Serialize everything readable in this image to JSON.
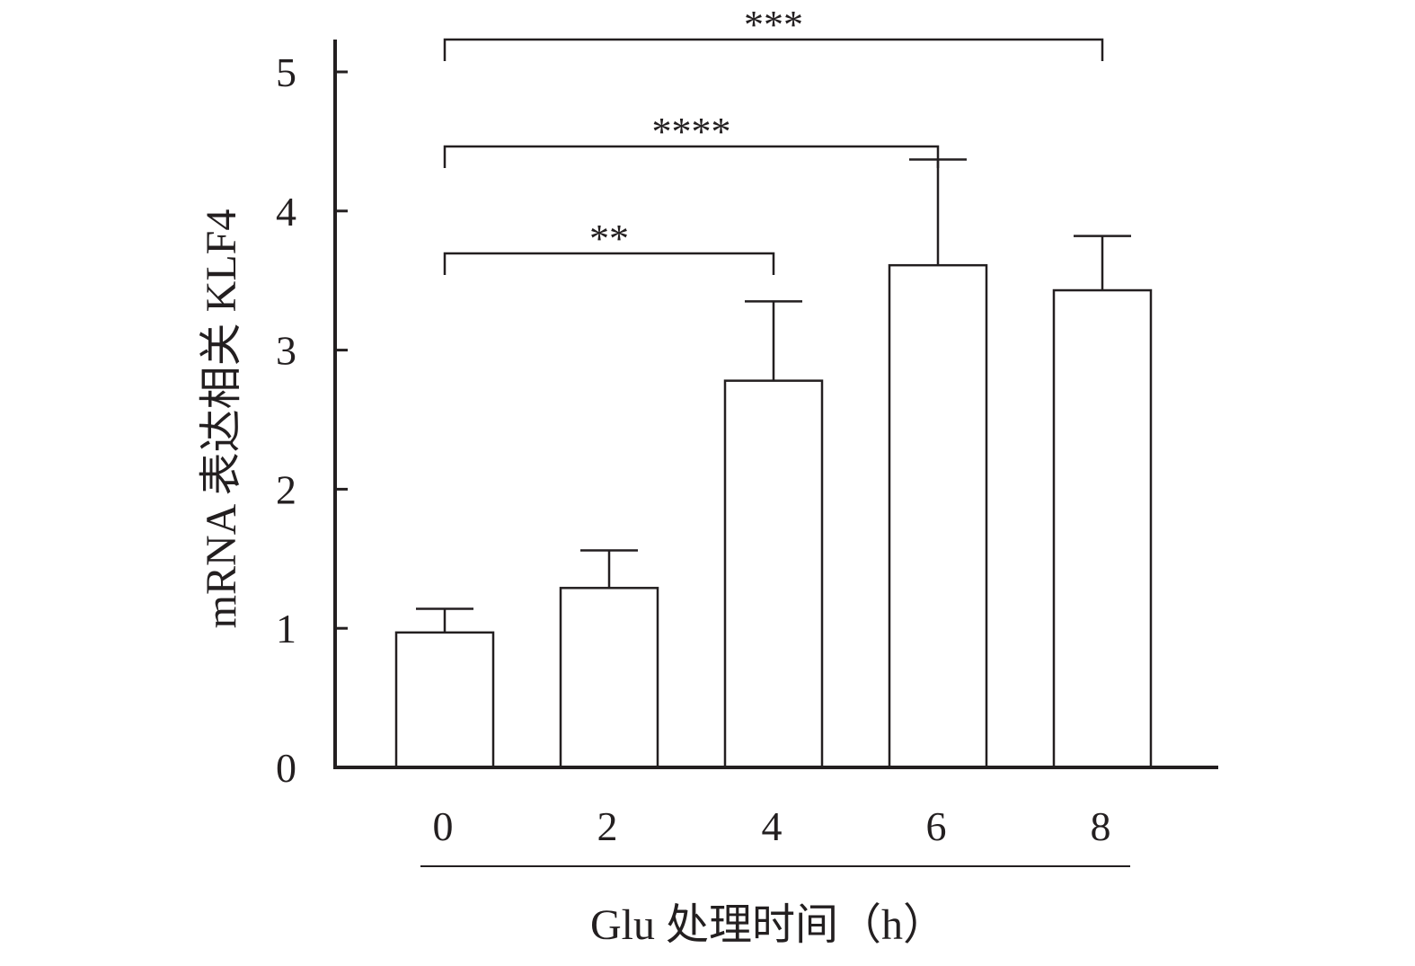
{
  "chart_data": {
    "type": "bar",
    "categories": [
      "0",
      "2",
      "4",
      "6",
      "8"
    ],
    "values": [
      0.97,
      1.29,
      2.78,
      3.61,
      3.43
    ],
    "error_upper": [
      1.14,
      1.56,
      3.35,
      4.37,
      3.82
    ],
    "xlabel": "Glu 处理时间（h）",
    "ylabel": "mRNA 表达相关 KLF4",
    "ylim": [
      0,
      5
    ],
    "yticks": [
      "0",
      "1",
      "2",
      "3",
      "4",
      "5"
    ],
    "grid": false,
    "legend": "none",
    "bar_fill": "#ffffff",
    "line_color": "#231f20",
    "significance": [
      {
        "from": "0",
        "to": "4",
        "label": "**"
      },
      {
        "from": "0",
        "to": "6",
        "label": "****"
      },
      {
        "from": "0",
        "to": "8",
        "label": "***"
      }
    ]
  }
}
